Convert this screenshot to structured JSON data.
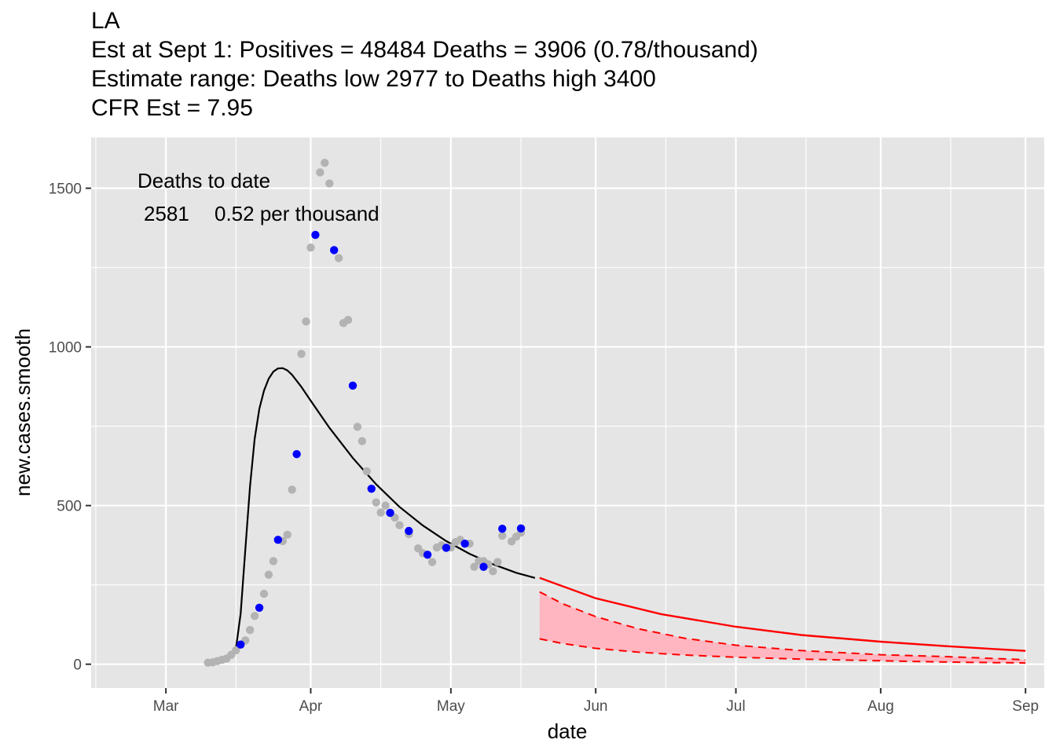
{
  "title_lines": [
    "LA",
    "Est at Sept 1: Positives = 48484 Deaths = 3906 (0.78/thousand)",
    "Estimate range: Deaths low 2977 to Deaths high 3400",
    "CFR Est = 7.95"
  ],
  "chart_data": {
    "type": "scatter",
    "title": "LA",
    "xlabel": "date",
    "ylabel": "new.cases.smooth",
    "x_tick_labels": [
      "Mar",
      "Apr",
      "May",
      "Jun",
      "Jul",
      "Aug",
      "Sep"
    ],
    "y_ticks": [
      0,
      500,
      1000,
      1500
    ],
    "y_tick_labels": [
      "0",
      "500",
      "1000",
      "1500"
    ],
    "xlim": [
      "2020-02-14",
      "2020-09-05"
    ],
    "ylim": [
      -75,
      1660
    ],
    "grid": true,
    "background": "#e5e5e5",
    "annotation": {
      "line1": "Deaths to date",
      "line2_count": "2581",
      "line2_rate": "0.52 per thousand"
    },
    "gray_points": [
      {
        "x": "2020-03-10",
        "y": 5
      },
      {
        "x": "2020-03-11",
        "y": 6
      },
      {
        "x": "2020-03-12",
        "y": 10
      },
      {
        "x": "2020-03-13",
        "y": 14
      },
      {
        "x": "2020-03-14",
        "y": 18
      },
      {
        "x": "2020-03-15",
        "y": 30
      },
      {
        "x": "2020-03-16",
        "y": 44
      },
      {
        "x": "2020-03-18",
        "y": 75
      },
      {
        "x": "2020-03-19",
        "y": 108
      },
      {
        "x": "2020-03-20",
        "y": 152
      },
      {
        "x": "2020-03-22",
        "y": 222
      },
      {
        "x": "2020-03-23",
        "y": 282
      },
      {
        "x": "2020-03-24",
        "y": 325
      },
      {
        "x": "2020-03-26",
        "y": 388
      },
      {
        "x": "2020-03-27",
        "y": 408
      },
      {
        "x": "2020-03-28",
        "y": 550
      },
      {
        "x": "2020-03-30",
        "y": 978
      },
      {
        "x": "2020-03-31",
        "y": 1080
      },
      {
        "x": "2020-04-01",
        "y": 1313
      },
      {
        "x": "2020-04-03",
        "y": 1550
      },
      {
        "x": "2020-04-04",
        "y": 1580
      },
      {
        "x": "2020-04-05",
        "y": 1515
      },
      {
        "x": "2020-04-07",
        "y": 1280
      },
      {
        "x": "2020-04-08",
        "y": 1075
      },
      {
        "x": "2020-04-09",
        "y": 1085
      },
      {
        "x": "2020-04-11",
        "y": 748
      },
      {
        "x": "2020-04-12",
        "y": 703
      },
      {
        "x": "2020-04-13",
        "y": 608
      },
      {
        "x": "2020-04-15",
        "y": 510
      },
      {
        "x": "2020-04-16",
        "y": 478
      },
      {
        "x": "2020-04-17",
        "y": 500
      },
      {
        "x": "2020-04-19",
        "y": 462
      },
      {
        "x": "2020-04-20",
        "y": 438
      },
      {
        "x": "2020-04-22",
        "y": 410
      },
      {
        "x": "2020-04-24",
        "y": 365
      },
      {
        "x": "2020-04-25",
        "y": 350
      },
      {
        "x": "2020-04-27",
        "y": 322
      },
      {
        "x": "2020-04-28",
        "y": 368
      },
      {
        "x": "2020-04-29",
        "y": 375
      },
      {
        "x": "2020-05-01",
        "y": 368
      },
      {
        "x": "2020-05-02",
        "y": 385
      },
      {
        "x": "2020-05-03",
        "y": 392
      },
      {
        "x": "2020-05-05",
        "y": 380
      },
      {
        "x": "2020-05-06",
        "y": 307
      },
      {
        "x": "2020-05-07",
        "y": 325
      },
      {
        "x": "2020-05-08",
        "y": 325
      },
      {
        "x": "2020-05-09",
        "y": 315
      },
      {
        "x": "2020-05-10",
        "y": 293
      },
      {
        "x": "2020-05-11",
        "y": 322
      },
      {
        "x": "2020-05-12",
        "y": 405
      },
      {
        "x": "2020-05-14",
        "y": 387
      },
      {
        "x": "2020-05-15",
        "y": 402
      },
      {
        "x": "2020-05-16",
        "y": 415
      }
    ],
    "blue_points": [
      {
        "x": "2020-03-17",
        "y": 62
      },
      {
        "x": "2020-03-21",
        "y": 178
      },
      {
        "x": "2020-03-25",
        "y": 392
      },
      {
        "x": "2020-03-29",
        "y": 662
      },
      {
        "x": "2020-04-02",
        "y": 1353
      },
      {
        "x": "2020-04-06",
        "y": 1305
      },
      {
        "x": "2020-04-10",
        "y": 878
      },
      {
        "x": "2020-04-14",
        "y": 553
      },
      {
        "x": "2020-04-18",
        "y": 477
      },
      {
        "x": "2020-04-22",
        "y": 420
      },
      {
        "x": "2020-04-26",
        "y": 345
      },
      {
        "x": "2020-04-30",
        "y": 367
      },
      {
        "x": "2020-05-04",
        "y": 380
      },
      {
        "x": "2020-05-08",
        "y": 307
      },
      {
        "x": "2020-05-12",
        "y": 427
      },
      {
        "x": "2020-05-16",
        "y": 428
      }
    ],
    "fit_curve": [
      {
        "x": "2020-03-16",
        "y": 50
      },
      {
        "x": "2020-03-17",
        "y": 160
      },
      {
        "x": "2020-03-18",
        "y": 360
      },
      {
        "x": "2020-03-19",
        "y": 560
      },
      {
        "x": "2020-03-20",
        "y": 710
      },
      {
        "x": "2020-03-21",
        "y": 805
      },
      {
        "x": "2020-03-22",
        "y": 862
      },
      {
        "x": "2020-03-23",
        "y": 900
      },
      {
        "x": "2020-03-24",
        "y": 922
      },
      {
        "x": "2020-03-25",
        "y": 932
      },
      {
        "x": "2020-03-26",
        "y": 933
      },
      {
        "x": "2020-03-27",
        "y": 926
      },
      {
        "x": "2020-03-28",
        "y": 912
      },
      {
        "x": "2020-03-30",
        "y": 874
      },
      {
        "x": "2020-04-01",
        "y": 830
      },
      {
        "x": "2020-04-05",
        "y": 745
      },
      {
        "x": "2020-04-10",
        "y": 650
      },
      {
        "x": "2020-04-15",
        "y": 567
      },
      {
        "x": "2020-04-20",
        "y": 496
      },
      {
        "x": "2020-04-25",
        "y": 437
      },
      {
        "x": "2020-04-30",
        "y": 388
      },
      {
        "x": "2020-05-05",
        "y": 348
      },
      {
        "x": "2020-05-10",
        "y": 315
      },
      {
        "x": "2020-05-15",
        "y": 288
      },
      {
        "x": "2020-05-19",
        "y": 272
      }
    ],
    "projection": [
      {
        "x": "2020-05-20",
        "y": 272
      },
      {
        "x": "2020-06-01",
        "y": 208
      },
      {
        "x": "2020-06-15",
        "y": 158
      },
      {
        "x": "2020-07-01",
        "y": 118
      },
      {
        "x": "2020-07-15",
        "y": 92
      },
      {
        "x": "2020-08-01",
        "y": 71
      },
      {
        "x": "2020-08-15",
        "y": 57
      },
      {
        "x": "2020-09-01",
        "y": 42
      }
    ],
    "projection_high": [
      {
        "x": "2020-05-20",
        "y": 228
      },
      {
        "x": "2020-05-25",
        "y": 190
      },
      {
        "x": "2020-06-01",
        "y": 150
      },
      {
        "x": "2020-06-10",
        "y": 112
      },
      {
        "x": "2020-06-20",
        "y": 82
      },
      {
        "x": "2020-07-01",
        "y": 60
      },
      {
        "x": "2020-07-15",
        "y": 43
      },
      {
        "x": "2020-08-01",
        "y": 30
      },
      {
        "x": "2020-08-15",
        "y": 24
      },
      {
        "x": "2020-09-01",
        "y": 14
      }
    ],
    "projection_low": [
      {
        "x": "2020-05-20",
        "y": 80
      },
      {
        "x": "2020-05-25",
        "y": 65
      },
      {
        "x": "2020-06-01",
        "y": 50
      },
      {
        "x": "2020-06-10",
        "y": 38
      },
      {
        "x": "2020-06-20",
        "y": 29
      },
      {
        "x": "2020-07-01",
        "y": 22
      },
      {
        "x": "2020-07-15",
        "y": 16
      },
      {
        "x": "2020-08-01",
        "y": 11
      },
      {
        "x": "2020-08-15",
        "y": 7
      },
      {
        "x": "2020-09-01",
        "y": 4
      }
    ]
  },
  "colors": {
    "gray_point": "#b3b3b3",
    "blue_point": "#0000ff",
    "fit_line": "#000000",
    "projection": "#ff0000",
    "band_fill": "#ffb6c1",
    "panel": "#e5e5e5",
    "grid": "#ffffff"
  }
}
